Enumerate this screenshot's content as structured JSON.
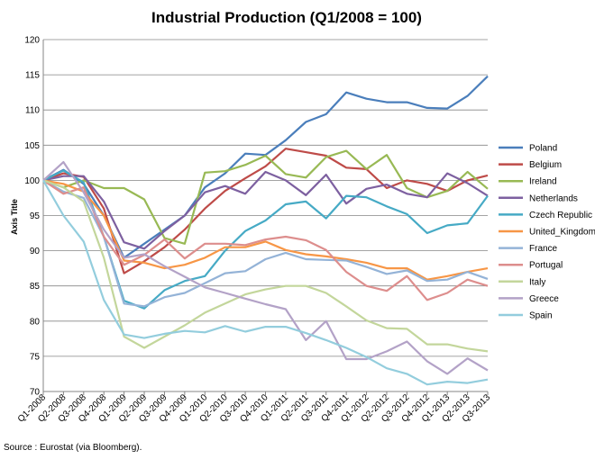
{
  "chart_data": {
    "type": "line",
    "title": "Industrial Production (Q1/2008  = 100)",
    "xlabel": "",
    "ylabel": "Axis Title",
    "ylim": [
      70,
      120
    ],
    "yticks": [
      70,
      75,
      80,
      85,
      90,
      95,
      100,
      105,
      110,
      115,
      120
    ],
    "grid": true,
    "legend": "right",
    "source": "Source : Eurostat (via Bloomberg).",
    "categories": [
      "Q1-2008",
      "Q2-2008",
      "Q3-2008",
      "Q4-2008",
      "Q1-2009",
      "Q2-2009",
      "Q3-2009",
      "Q4-2009",
      "Q1-2010",
      "Q2-2010",
      "Q3-2010",
      "Q4-2010",
      "Q1-2011",
      "Q2-2011",
      "Q3-2011",
      "Q4-2011",
      "Q1-2012",
      "Q2-2012",
      "Q3-2012",
      "Q4-2012",
      "Q1-2013",
      "Q2-2013",
      "Q3-2013"
    ],
    "series": [
      {
        "name": "Poland",
        "color": "#4a7ebb",
        "values": [
          100,
          101.5,
          99.5,
          95,
          89,
          91,
          93,
          95,
          99,
          101,
          103.8,
          103.6,
          105.7,
          108.3,
          109.4,
          112.5,
          111.6,
          111.1,
          111.1,
          110.3,
          110.2,
          112,
          114.8
        ]
      },
      {
        "name": "Belgium",
        "color": "#be4b48",
        "values": [
          100,
          101,
          100.5,
          96,
          86.8,
          88.5,
          90.5,
          93,
          96,
          98.5,
          100.3,
          102,
          104.5,
          104,
          103.5,
          101.8,
          101.6,
          98.9,
          100,
          99.5,
          98.5,
          100,
          100.7
        ]
      },
      {
        "name": "Ireland",
        "color": "#98b954",
        "values": [
          100,
          99,
          100,
          98.9,
          98.9,
          97.3,
          91.8,
          91,
          101.1,
          101.3,
          102.2,
          103.5,
          100.9,
          100.4,
          103.3,
          104.2,
          101.6,
          103.6,
          98.9,
          97.6,
          98.5,
          101.2,
          98.8
        ]
      },
      {
        "name": "Netherlands",
        "color": "#7d60a0",
        "values": [
          100,
          100.6,
          100.6,
          97,
          91.2,
          90.3,
          92.8,
          95,
          98.3,
          99.2,
          98.1,
          101.2,
          100,
          97.9,
          100.8,
          96.7,
          98.8,
          99.4,
          98.1,
          97.6,
          101,
          99.6,
          97.8
        ]
      },
      {
        "name": "Czech Republic",
        "color": "#46aac5",
        "values": [
          100,
          101.4,
          99.7,
          92,
          82.9,
          81.8,
          84.4,
          85.7,
          86.4,
          90,
          92.8,
          94.3,
          96.6,
          97,
          94.6,
          97.8,
          97.6,
          96.3,
          95.2,
          92.5,
          93.6,
          93.9,
          97.8
        ]
      },
      {
        "name": "United_Kingdom",
        "color": "#f79646",
        "values": [
          100,
          99.5,
          98.4,
          95,
          88.6,
          88.3,
          87.5,
          88,
          89,
          90.5,
          90.5,
          91.3,
          90.1,
          89.5,
          89.2,
          88.8,
          88.3,
          87.5,
          87.5,
          85.9,
          86.4,
          87,
          87.5
        ]
      },
      {
        "name": "France",
        "color": "#94b3d7",
        "values": [
          100,
          98.4,
          97.5,
          92,
          82.5,
          82.1,
          83.4,
          84,
          85.4,
          86.8,
          87.1,
          88.8,
          89.7,
          88.8,
          88.7,
          88.6,
          87.7,
          86.7,
          87.2,
          85.7,
          85.9,
          87,
          86
        ]
      },
      {
        "name": "Portugal",
        "color": "#dd8e8d",
        "values": [
          100,
          98.1,
          99,
          92,
          88,
          89.4,
          91.6,
          88.9,
          91,
          91,
          90.8,
          91.6,
          92,
          91.5,
          90.1,
          87,
          85,
          84.3,
          86.4,
          83,
          84,
          85.9,
          85
        ]
      },
      {
        "name": "Italy",
        "color": "#c3d69b",
        "values": [
          100,
          99,
          97,
          89,
          77.8,
          76.2,
          77.8,
          79.4,
          81.2,
          82.5,
          83.8,
          84.5,
          85,
          85,
          84,
          82.1,
          80.1,
          79,
          78.9,
          76.7,
          76.7,
          76.1,
          75.7
        ]
      },
      {
        "name": "Greece",
        "color": "#b3a2c7",
        "values": [
          100,
          102.6,
          98.3,
          93,
          89,
          89.5,
          87.8,
          86.3,
          84.8,
          84,
          83.2,
          82.4,
          81.7,
          77.3,
          80,
          74.6,
          74.6,
          75.7,
          77.1,
          74.3,
          72.5,
          74.7,
          73
        ]
      },
      {
        "name": "Spain",
        "color": "#93cddd",
        "values": [
          100,
          95,
          91.3,
          83,
          78.1,
          77.6,
          78.2,
          78.6,
          78.4,
          79.3,
          78.5,
          79.2,
          79.2,
          78.3,
          77.3,
          76.2,
          74.9,
          73.3,
          72.5,
          71,
          71.4,
          71.2,
          71.7
        ]
      }
    ]
  }
}
